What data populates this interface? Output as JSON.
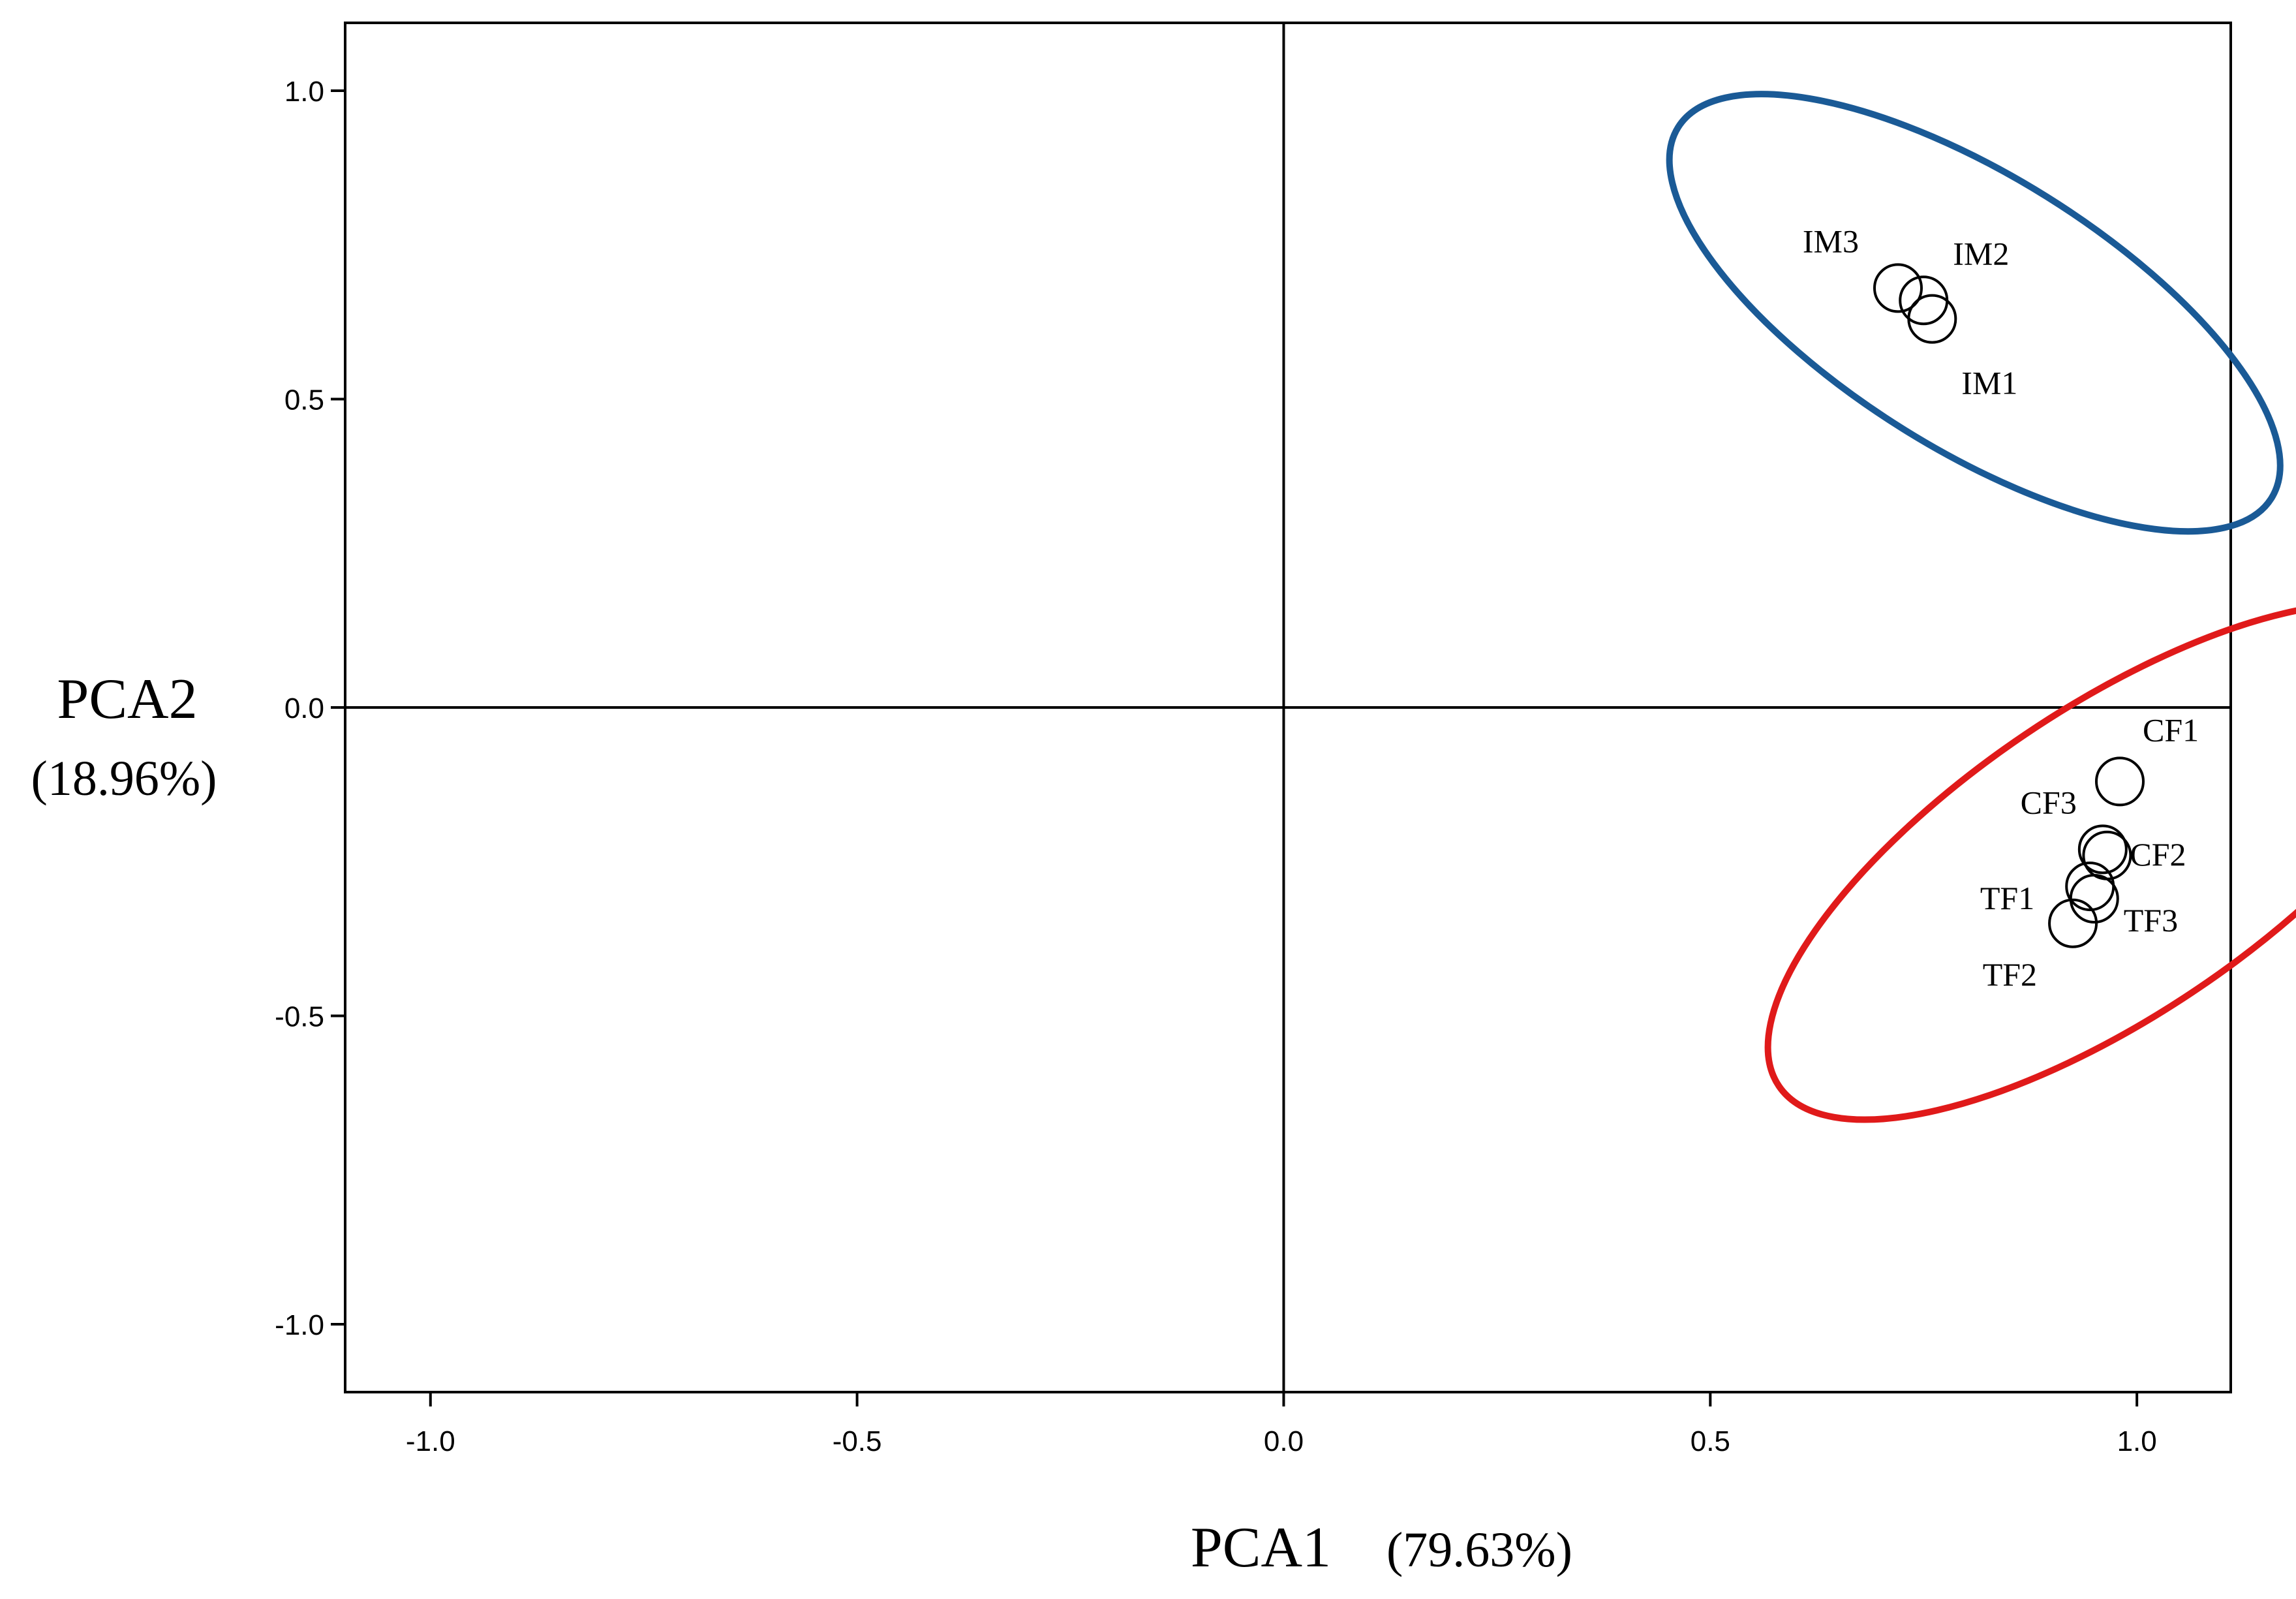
{
  "chart_data": {
    "type": "scatter",
    "title": "",
    "xlabel": "PCA1",
    "xlabel_pct": "(79.63%)",
    "ylabel": "PCA2",
    "ylabel_pct": "(18.96%)",
    "xlim": [
      -1.1,
      1.11
    ],
    "ylim": [
      -1.11,
      1.11
    ],
    "xticks": [
      -1.0,
      -0.5,
      0.0,
      0.5,
      1.0
    ],
    "xtick_labels": [
      "-1.0",
      "-0.5",
      "0.0",
      "0.5",
      "1.0"
    ],
    "yticks": [
      1.0,
      0.5,
      0.0,
      -0.5,
      -1.0
    ],
    "ytick_labels": [
      "1.0",
      "0.5",
      "0.0",
      "-0.5",
      "-1.0"
    ],
    "grid": false,
    "reference_lines": {
      "x": 0,
      "y": 0
    },
    "marker": "open-circle",
    "points": [
      {
        "label": "IM3",
        "x": 0.72,
        "y": 0.68
      },
      {
        "label": "IM2",
        "x": 0.75,
        "y": 0.66
      },
      {
        "label": "IM1",
        "x": 0.76,
        "y": 0.63
      },
      {
        "label": "CF1",
        "x": 0.98,
        "y": -0.12
      },
      {
        "label": "CF3",
        "x": 0.96,
        "y": -0.23
      },
      {
        "label": "CF2",
        "x": 0.965,
        "y": -0.24
      },
      {
        "label": "TF1",
        "x": 0.945,
        "y": -0.29
      },
      {
        "label": "TF3",
        "x": 0.95,
        "y": -0.31
      },
      {
        "label": "TF2",
        "x": 0.925,
        "y": -0.35
      }
    ],
    "groups": [
      {
        "members": [
          "IM1",
          "IM2",
          "IM3"
        ],
        "color": "#1a5a96",
        "center": [
          0.81,
          0.64
        ],
        "rx_data": 0.41,
        "ry_data": 0.16,
        "angle_deg": 32
      },
      {
        "members": [
          "CF1",
          "CF2",
          "CF3",
          "TF1",
          "TF2",
          "TF3"
        ],
        "color": "#e01a1a",
        "center": [
          0.97,
          -0.25
        ],
        "rx_data": 0.47,
        "ry_data": 0.18,
        "angle_deg": -34
      }
    ]
  }
}
